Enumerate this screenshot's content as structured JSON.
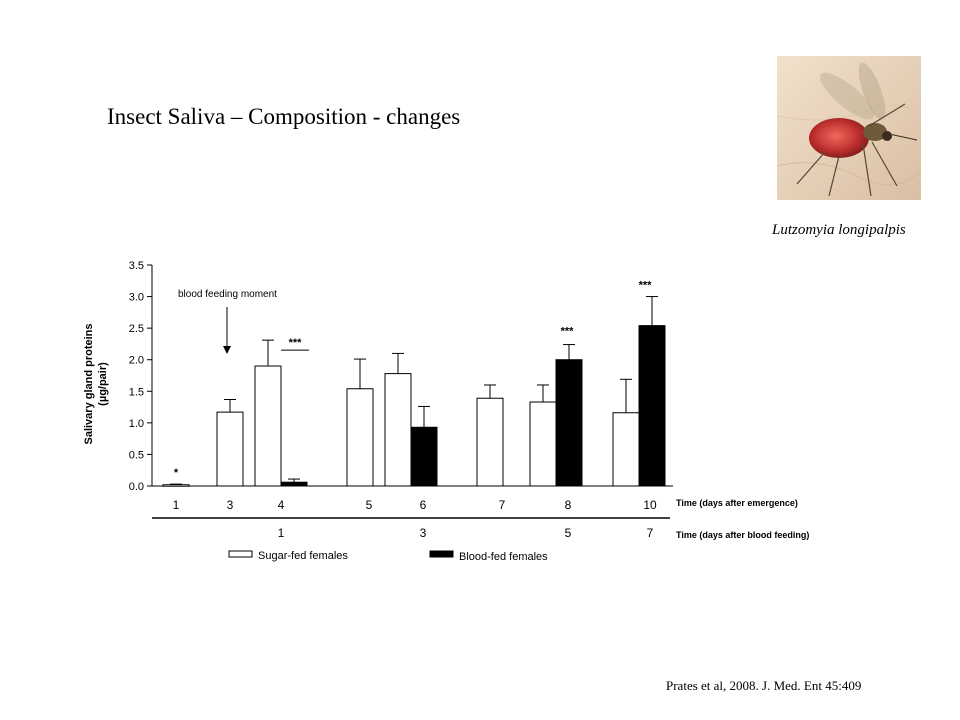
{
  "slide": {
    "title": "Insect Saliva – Composition - changes",
    "photo_caption": "Lutzomyia longipalpis",
    "citation": "Prates et al, 2008. J. Med. Ent 45:409"
  },
  "photo": {
    "subject": "sand-fly-on-skin",
    "colors": [
      "#e9d3bd",
      "#c0302f",
      "#6e5a3a"
    ]
  },
  "chart_data": {
    "type": "bar",
    "ylabel_line1": "Salivary gland proteins",
    "ylabel_line2": "(µg/pair)",
    "ylim": [
      0,
      3.5
    ],
    "yticks": [
      "0.0",
      "0.5",
      "1.0",
      "1.5",
      "2.0",
      "2.5",
      "3.0",
      "3.5"
    ],
    "annotation": "blood feeding moment",
    "x_row1_label": "Time (days after emergence)",
    "x_row2_label": "Time (days after blood feeding)",
    "categories": [
      "1",
      "3",
      "4",
      "5",
      "6",
      "7",
      "8",
      "10"
    ],
    "categories_after_feeding": [
      "",
      "",
      "1",
      "",
      "3",
      "",
      "5",
      "7"
    ],
    "series": [
      {
        "name": "Sugar-fed females",
        "color": "#ffffff",
        "values": [
          0.02,
          1.17,
          1.9,
          1.54,
          1.78,
          1.39,
          1.33,
          1.16
        ],
        "errors": [
          0.01,
          0.2,
          0.41,
          0.47,
          0.32,
          0.21,
          0.27,
          0.53
        ]
      },
      {
        "name": "Blood-fed females",
        "color": "#000000",
        "values": [
          null,
          null,
          0.06,
          null,
          0.93,
          null,
          2.0,
          2.54
        ],
        "errors": [
          null,
          null,
          0.05,
          null,
          0.33,
          null,
          0.24,
          0.46
        ]
      }
    ],
    "significance": [
      "*",
      "",
      "***",
      "",
      "",
      "",
      "***",
      "***"
    ],
    "grid": false,
    "legend_position": "bottom"
  }
}
